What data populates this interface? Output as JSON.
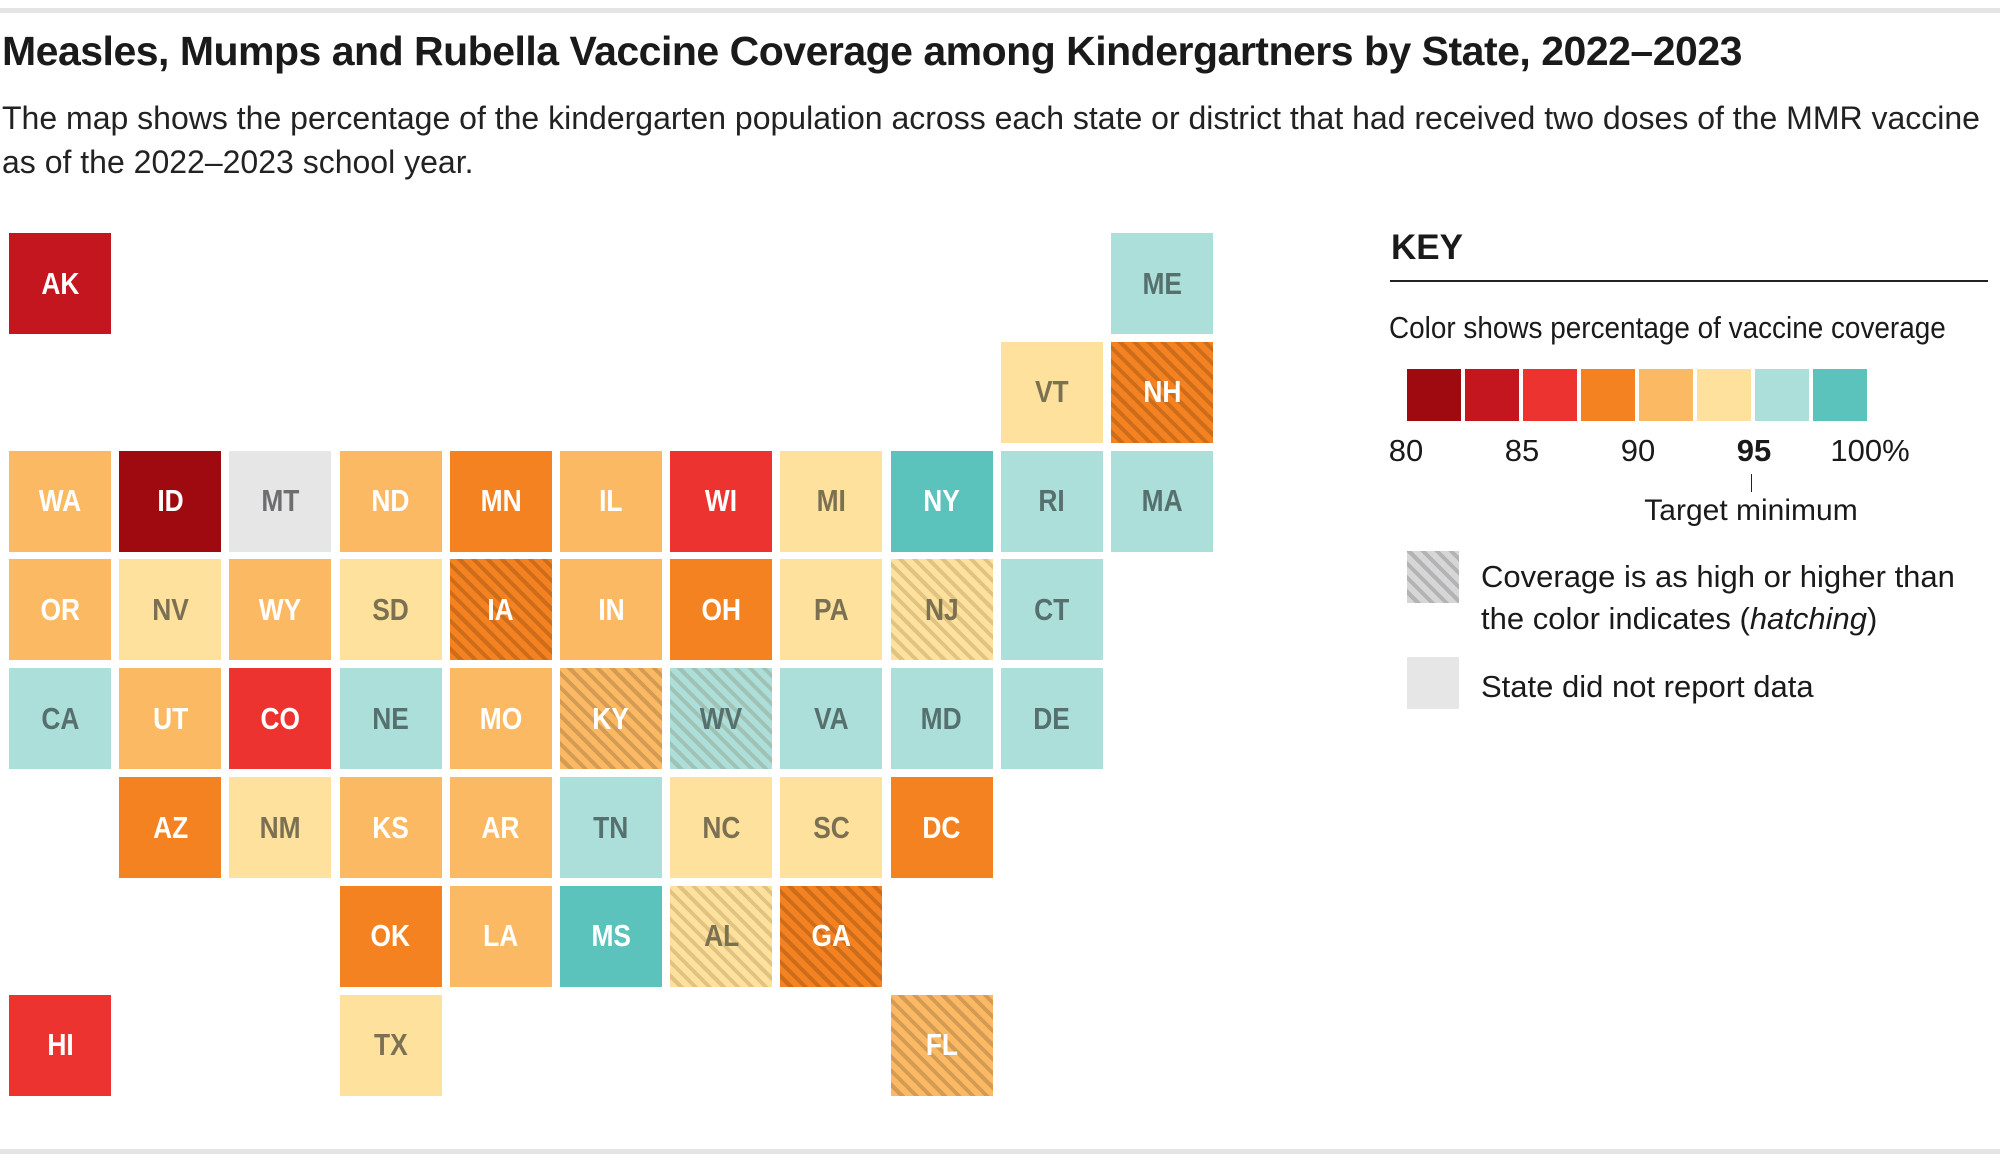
{
  "title": "Measles, Mumps and Rubella Vaccine Coverage among Kindergartners by State, 2022–2023",
  "subtitle": "The map shows the percentage of the kindergarten population across each state or district that had received two doses of the MMR vaccine as of the 2022–2023 school year.",
  "key": {
    "title": "KEY",
    "caption": "Color shows percentage of vaccine coverage",
    "bins": [
      {
        "range": "80–82.5",
        "color": "#9e0a10"
      },
      {
        "range": "82.5–85",
        "color": "#c4161e"
      },
      {
        "range": "85–87.5",
        "color": "#ec3330"
      },
      {
        "range": "87.5–90",
        "color": "#f48220"
      },
      {
        "range": "90–92.5",
        "color": "#fbb963"
      },
      {
        "range": "92.5–95",
        "color": "#fee19c"
      },
      {
        "range": "95–97.5",
        "color": "#acdeda"
      },
      {
        "range": "97.5–100",
        "color": "#5bc3bb"
      }
    ],
    "ticks": [
      "80",
      "85",
      "90",
      "95",
      "100%"
    ],
    "target_label": "Target minimum",
    "hatch_label_1": "Coverage is as high or higher than",
    "hatch_label_2a": "the color indicates (",
    "hatch_label_2b": "hatching",
    "hatch_label_2c": ")",
    "nodata_label": "State did not report data",
    "nodata_color": "#e6e6e6"
  },
  "states": [
    {
      "abbr": "AK",
      "row": 0,
      "col": 0,
      "bin": 1
    },
    {
      "abbr": "ME",
      "row": 0,
      "col": 10,
      "bin": 6
    },
    {
      "abbr": "VT",
      "row": 1,
      "col": 9,
      "bin": 5
    },
    {
      "abbr": "NH",
      "row": 1,
      "col": 10,
      "bin": 3,
      "hatched": true
    },
    {
      "abbr": "WA",
      "row": 2,
      "col": 0,
      "bin": 4
    },
    {
      "abbr": "ID",
      "row": 2,
      "col": 1,
      "bin": 0
    },
    {
      "abbr": "MT",
      "row": 2,
      "col": 2,
      "bin": null
    },
    {
      "abbr": "ND",
      "row": 2,
      "col": 3,
      "bin": 4
    },
    {
      "abbr": "MN",
      "row": 2,
      "col": 4,
      "bin": 3
    },
    {
      "abbr": "IL",
      "row": 2,
      "col": 5,
      "bin": 4
    },
    {
      "abbr": "WI",
      "row": 2,
      "col": 6,
      "bin": 2
    },
    {
      "abbr": "MI",
      "row": 2,
      "col": 7,
      "bin": 5
    },
    {
      "abbr": "NY",
      "row": 2,
      "col": 8,
      "bin": 7
    },
    {
      "abbr": "RI",
      "row": 2,
      "col": 9,
      "bin": 6
    },
    {
      "abbr": "MA",
      "row": 2,
      "col": 10,
      "bin": 6
    },
    {
      "abbr": "OR",
      "row": 3,
      "col": 0,
      "bin": 4
    },
    {
      "abbr": "NV",
      "row": 3,
      "col": 1,
      "bin": 5
    },
    {
      "abbr": "WY",
      "row": 3,
      "col": 2,
      "bin": 4
    },
    {
      "abbr": "SD",
      "row": 3,
      "col": 3,
      "bin": 5
    },
    {
      "abbr": "IA",
      "row": 3,
      "col": 4,
      "bin": 3,
      "hatched": true
    },
    {
      "abbr": "IN",
      "row": 3,
      "col": 5,
      "bin": 4
    },
    {
      "abbr": "OH",
      "row": 3,
      "col": 6,
      "bin": 3
    },
    {
      "abbr": "PA",
      "row": 3,
      "col": 7,
      "bin": 5
    },
    {
      "abbr": "NJ",
      "row": 3,
      "col": 8,
      "bin": 5,
      "hatched": true
    },
    {
      "abbr": "CT",
      "row": 3,
      "col": 9,
      "bin": 6
    },
    {
      "abbr": "CA",
      "row": 4,
      "col": 0,
      "bin": 6
    },
    {
      "abbr": "UT",
      "row": 4,
      "col": 1,
      "bin": 4
    },
    {
      "abbr": "CO",
      "row": 4,
      "col": 2,
      "bin": 2
    },
    {
      "abbr": "NE",
      "row": 4,
      "col": 3,
      "bin": 6
    },
    {
      "abbr": "MO",
      "row": 4,
      "col": 4,
      "bin": 4
    },
    {
      "abbr": "KY",
      "row": 4,
      "col": 5,
      "bin": 4,
      "hatched": true
    },
    {
      "abbr": "WV",
      "row": 4,
      "col": 6,
      "bin": 6,
      "hatched": true
    },
    {
      "abbr": "VA",
      "row": 4,
      "col": 7,
      "bin": 6
    },
    {
      "abbr": "MD",
      "row": 4,
      "col": 8,
      "bin": 6
    },
    {
      "abbr": "DE",
      "row": 4,
      "col": 9,
      "bin": 6
    },
    {
      "abbr": "AZ",
      "row": 5,
      "col": 1,
      "bin": 3
    },
    {
      "abbr": "NM",
      "row": 5,
      "col": 2,
      "bin": 5
    },
    {
      "abbr": "KS",
      "row": 5,
      "col": 3,
      "bin": 4
    },
    {
      "abbr": "AR",
      "row": 5,
      "col": 4,
      "bin": 4
    },
    {
      "abbr": "TN",
      "row": 5,
      "col": 5,
      "bin": 6
    },
    {
      "abbr": "NC",
      "row": 5,
      "col": 6,
      "bin": 5
    },
    {
      "abbr": "SC",
      "row": 5,
      "col": 7,
      "bin": 5
    },
    {
      "abbr": "DC",
      "row": 5,
      "col": 8,
      "bin": 3
    },
    {
      "abbr": "OK",
      "row": 6,
      "col": 3,
      "bin": 3
    },
    {
      "abbr": "LA",
      "row": 6,
      "col": 4,
      "bin": 4
    },
    {
      "abbr": "MS",
      "row": 6,
      "col": 5,
      "bin": 7
    },
    {
      "abbr": "AL",
      "row": 6,
      "col": 6,
      "bin": 5,
      "hatched": true
    },
    {
      "abbr": "GA",
      "row": 6,
      "col": 7,
      "bin": 3,
      "hatched": true
    },
    {
      "abbr": "HI",
      "row": 7,
      "col": 0,
      "bin": 2
    },
    {
      "abbr": "TX",
      "row": 7,
      "col": 3,
      "bin": 5
    },
    {
      "abbr": "FL",
      "row": 7,
      "col": 8,
      "bin": 4,
      "hatched": true
    }
  ]
}
